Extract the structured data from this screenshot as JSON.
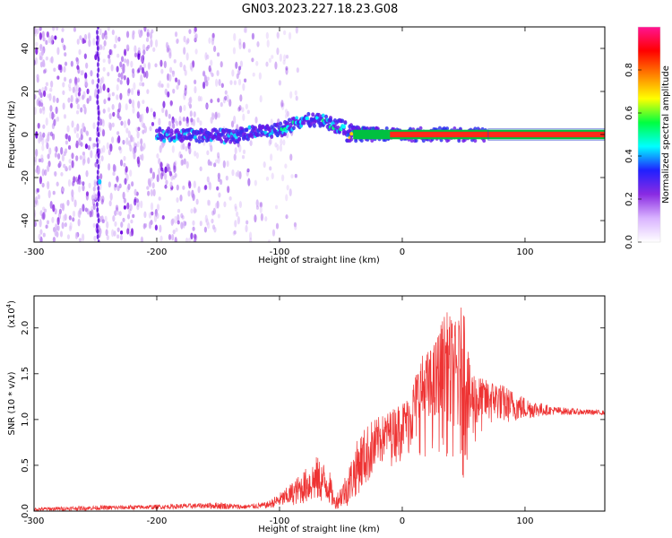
{
  "figure": {
    "title": "GN03.2023.227.18.23.G08"
  },
  "chart_data": [
    {
      "type": "heatmap",
      "xlabel": "Height of straight line (km)",
      "ylabel": "Frequency (Hz)",
      "xlim": [
        -300,
        165
      ],
      "ylim": [
        -50,
        50
      ],
      "xticks": [
        -300,
        -200,
        -100,
        0,
        100
      ],
      "yticks": [
        -40,
        -20,
        0,
        20,
        40
      ],
      "colorbar": {
        "label": "Normalized spectral amplitude",
        "range": [
          0.0,
          1.0
        ],
        "ticks": [
          "0.0",
          "0.2",
          "0.4",
          "0.6",
          "0.8"
        ],
        "colormap": [
          "#ffffff",
          "#d9b3ff",
          "#8a2be2",
          "#2020ff",
          "#00ffff",
          "#00ff40",
          "#ffff00",
          "#ff8000",
          "#ff0000",
          "#ff1493"
        ]
      },
      "features": {
        "noise_region_x": [
          -300,
          -125
        ],
        "spectral_line_path": [
          {
            "x": -200,
            "y": 0
          },
          {
            "x": -140,
            "y": -1
          },
          {
            "x": -120,
            "y": 1
          },
          {
            "x": -100,
            "y": 2
          },
          {
            "x": -85,
            "y": 6
          },
          {
            "x": -70,
            "y": 7
          },
          {
            "x": -60,
            "y": 5
          },
          {
            "x": -40,
            "y": 2
          },
          {
            "x": -20,
            "y": 1
          },
          {
            "x": 0,
            "y": 0
          },
          {
            "x": 165,
            "y": 0
          }
        ],
        "vertical_streak_x": -248
      }
    },
    {
      "type": "line",
      "xlabel": "Height of straight line (km)",
      "ylabel": "SNR (10 * v/v)",
      "y_multiplier": "(x10",
      "y_multiplier_exp": "4",
      "y_multiplier_close": ")",
      "xlim": [
        -300,
        165
      ],
      "ylim": [
        0,
        2.35
      ],
      "xticks": [
        -300,
        -200,
        -100,
        0,
        100
      ],
      "yticks": [
        "0.0",
        "0.5",
        "1.0",
        "1.5",
        "2.0"
      ],
      "color": "#ee3333",
      "envelope": {
        "x": [
          -300,
          -250,
          -200,
          -160,
          -150,
          -130,
          -110,
          -95,
          -80,
          -70,
          -60,
          -55,
          -45,
          -35,
          -25,
          -15,
          -5,
          5,
          15,
          25,
          35,
          45,
          50,
          55,
          65,
          80,
          100,
          120,
          140,
          165
        ],
        "lo": [
          0.0,
          0.01,
          0.02,
          0.03,
          0.02,
          0.02,
          0.03,
          0.05,
          0.08,
          0.1,
          0.08,
          0.02,
          0.05,
          0.2,
          0.35,
          0.45,
          0.5,
          0.55,
          0.6,
          0.55,
          0.6,
          0.4,
          0.3,
          0.5,
          0.8,
          0.95,
          1.0,
          1.05,
          1.05,
          1.05
        ],
        "hi": [
          0.04,
          0.06,
          0.07,
          0.09,
          0.1,
          0.07,
          0.1,
          0.25,
          0.45,
          0.6,
          0.5,
          0.15,
          0.45,
          0.85,
          1.0,
          1.05,
          1.15,
          1.25,
          1.7,
          1.8,
          2.2,
          2.05,
          2.35,
          1.6,
          1.45,
          1.4,
          1.25,
          1.15,
          1.12,
          1.1
        ]
      }
    }
  ]
}
